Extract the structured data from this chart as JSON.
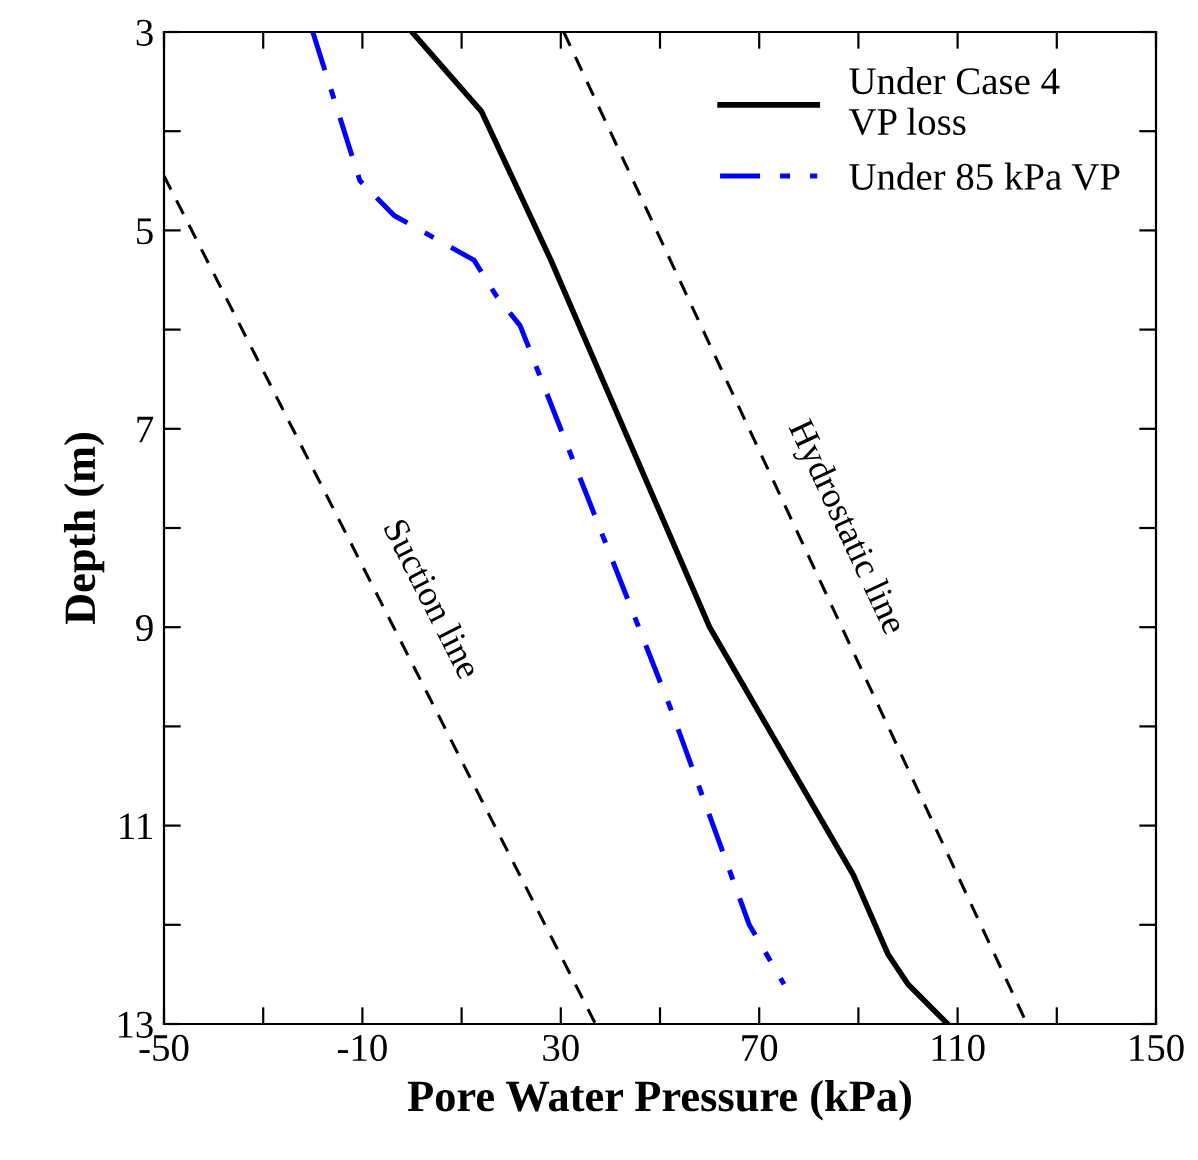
{
  "chart_data": {
    "type": "line",
    "xlabel": "Pore Water Pressure (kPa)",
    "ylabel": "Depth (m)",
    "xlim": [
      -50,
      150
    ],
    "ylim": [
      13,
      3
    ],
    "xticks": [
      -50,
      {
        "value": -30,
        "label": null
      },
      -10,
      {
        "value": 10,
        "label": null
      },
      30,
      {
        "value": 50,
        "label": null
      },
      70,
      {
        "value": 90,
        "label": null
      },
      110,
      {
        "value": 130,
        "label": null
      },
      150
    ],
    "yticks": [
      3,
      {
        "value": 4,
        "label": null
      },
      5,
      {
        "value": 6,
        "label": null
      },
      7,
      {
        "value": 8,
        "label": null
      },
      9,
      {
        "value": 10,
        "label": null
      },
      11,
      {
        "value": 12,
        "label": null
      },
      13
    ],
    "grid": false,
    "legend": "top right",
    "marker": "none",
    "series": [
      {
        "name": "Under Case 4\nVP loss",
        "color": "#000000",
        "line_style": "solid",
        "x": [
          0,
          14,
          28,
          60,
          89,
          96,
          100,
          108
        ],
        "values": [
          3,
          3.8,
          5.3,
          9,
          11.5,
          12.3,
          12.6,
          13
        ]
      },
      {
        "name": "Under 85 kPa VP",
        "color": "#0000ff",
        "line_style": "dashdot",
        "x": [
          -20,
          -10.5,
          -3.6,
          12.5,
          17,
          21.8,
          52,
          60,
          68,
          75
        ],
        "values": [
          3,
          4.5,
          4.85,
          5.3,
          5.66,
          5.96,
          9.8,
          10.9,
          12,
          12.6
        ]
      },
      {
        "name": "Hydrostatic line",
        "color": "#000000",
        "line_style": "dashed",
        "x": [
          30.6,
          124
        ],
        "values": [
          3,
          13
        ]
      },
      {
        "name": "Suction line",
        "color": "#000000",
        "line_style": "dashed",
        "x": [
          -50,
          37
        ],
        "values": [
          4.45,
          13
        ]
      }
    ]
  }
}
